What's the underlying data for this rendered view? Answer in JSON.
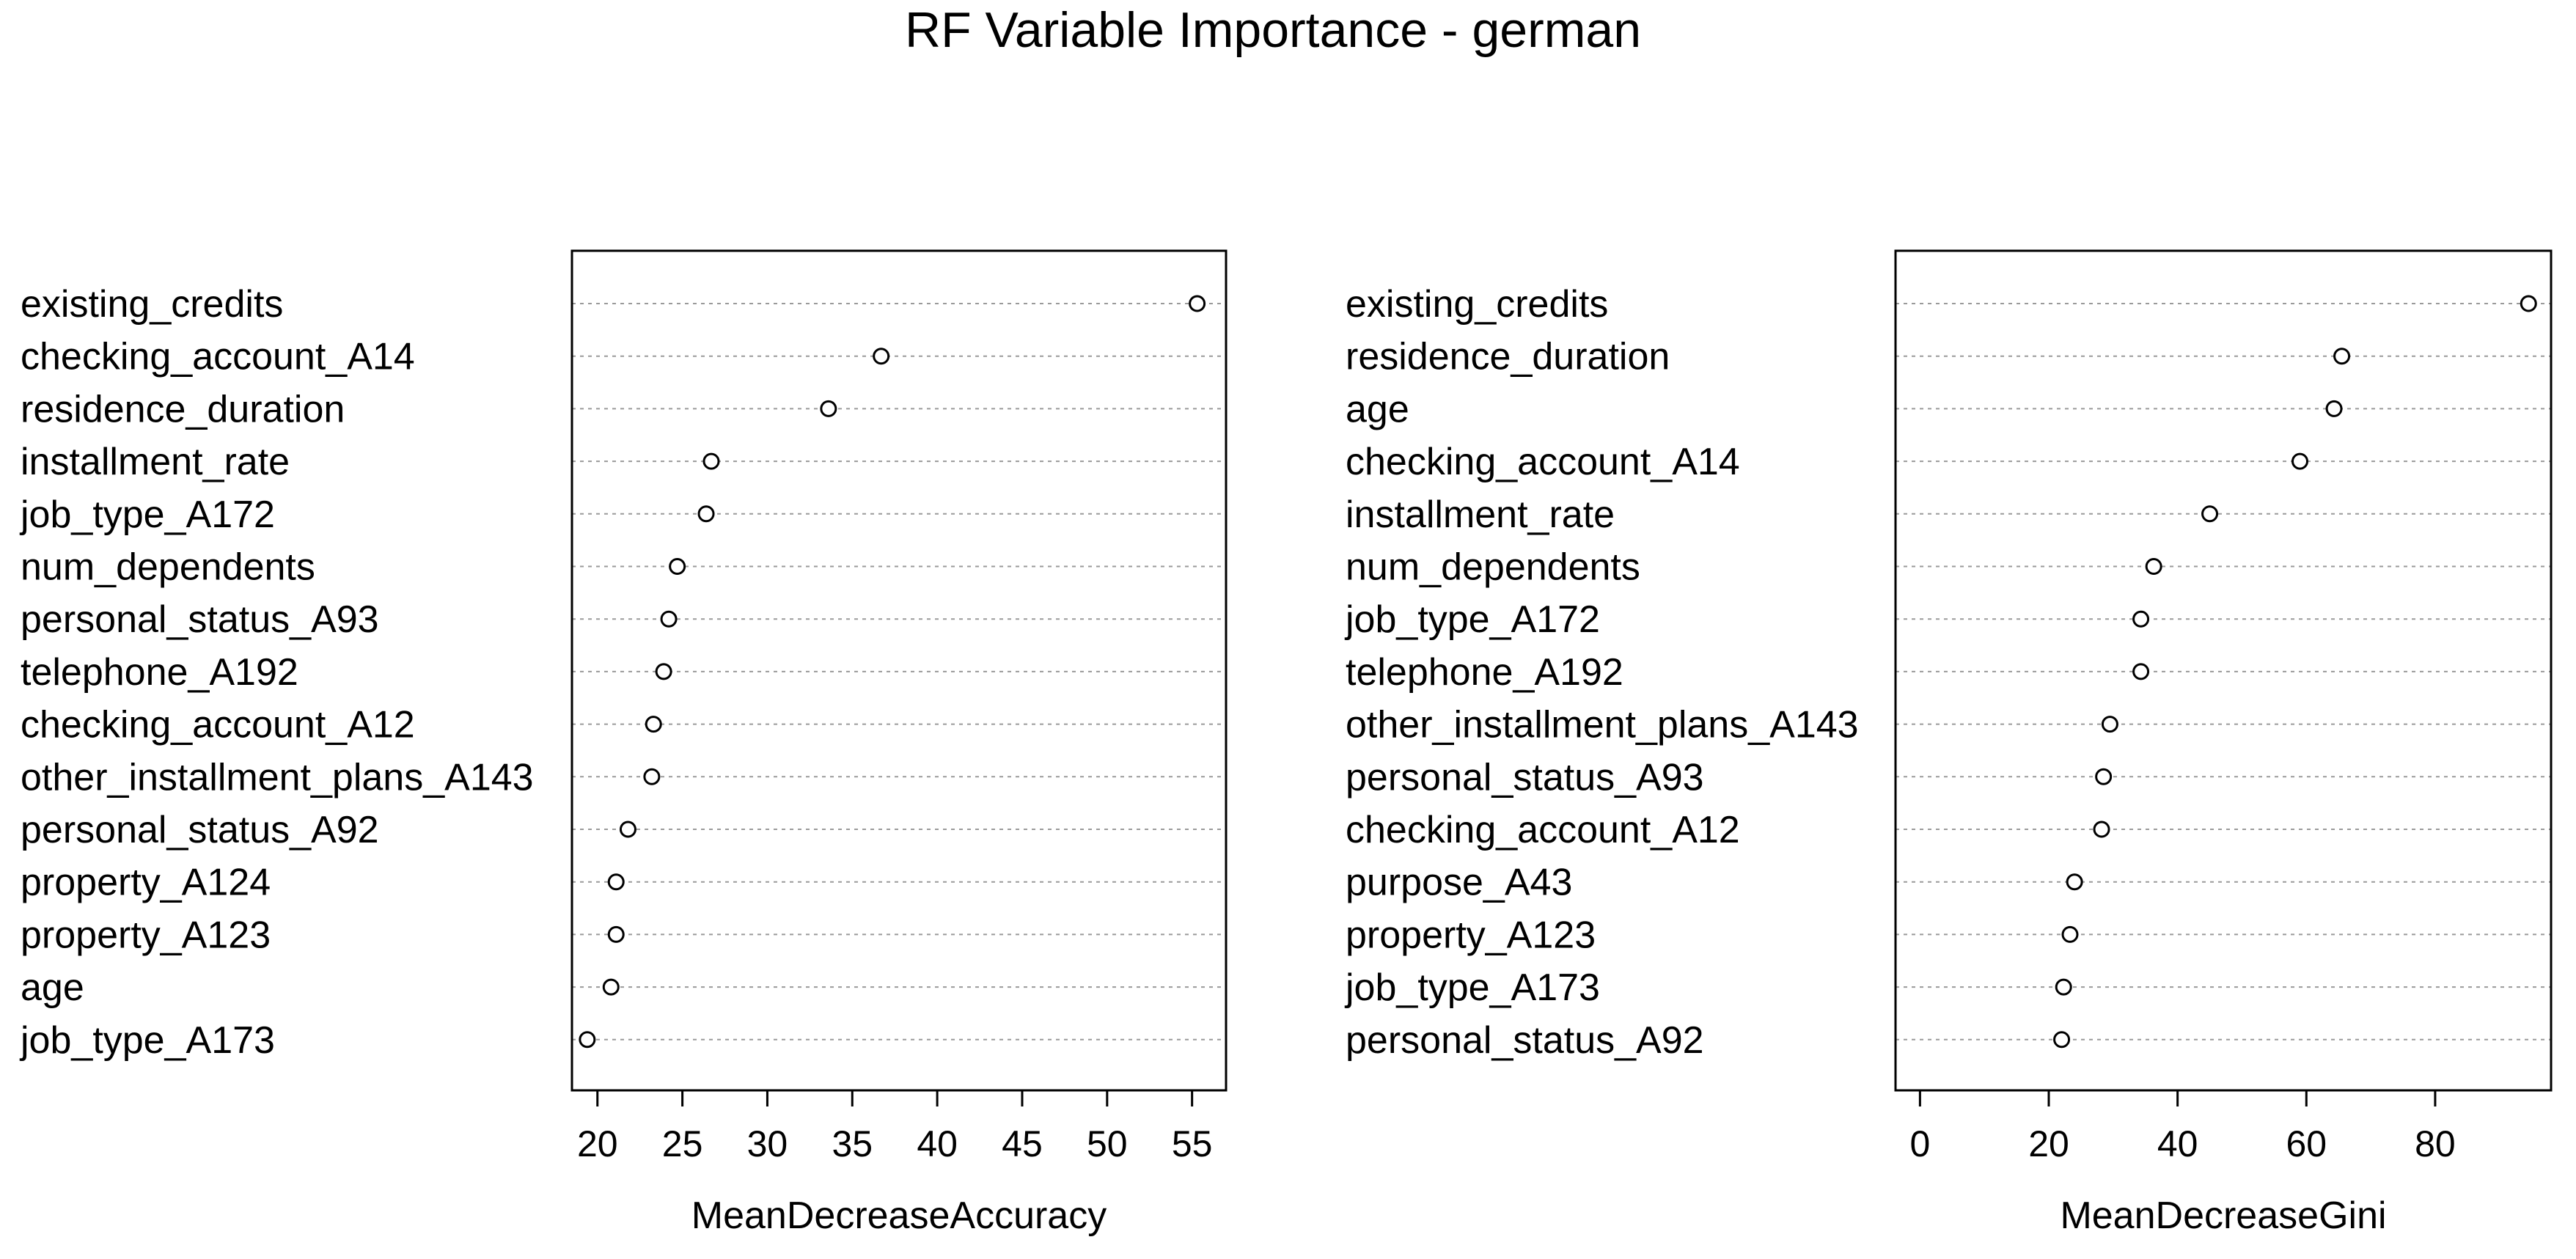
{
  "chart_data": {
    "title": "RF Variable Importance - german",
    "panels": [
      {
        "type": "scatter",
        "xlabel": "MeanDecreaseAccuracy",
        "xlim": [
          18.5,
          57
        ],
        "xticks": [
          20,
          25,
          30,
          35,
          40,
          45,
          50,
          55
        ],
        "grid": true,
        "items": [
          {
            "label": "existing_credits",
            "value": 55.3
          },
          {
            "label": "checking_account_A14",
            "value": 36.7
          },
          {
            "label": "residence_duration",
            "value": 33.6
          },
          {
            "label": "installment_rate",
            "value": 26.7
          },
          {
            "label": "job_type_A172",
            "value": 26.4
          },
          {
            "label": "num_dependents",
            "value": 24.7
          },
          {
            "label": "personal_status_A93",
            "value": 24.2
          },
          {
            "label": "telephone_A192",
            "value": 23.9
          },
          {
            "label": "checking_account_A12",
            "value": 23.3
          },
          {
            "label": "other_installment_plans_A143",
            "value": 23.2
          },
          {
            "label": "personal_status_A92",
            "value": 21.8
          },
          {
            "label": "property_A124",
            "value": 21.1
          },
          {
            "label": "property_A123",
            "value": 21.1
          },
          {
            "label": "age",
            "value": 20.8
          },
          {
            "label": "job_type_A173",
            "value": 19.4
          }
        ]
      },
      {
        "type": "scatter",
        "xlabel": "MeanDecreaseGini",
        "xlim": [
          -3.8,
          98
        ],
        "xticks": [
          0,
          20,
          40,
          60,
          80
        ],
        "grid": true,
        "items": [
          {
            "label": "existing_credits",
            "value": 94.5
          },
          {
            "label": "residence_duration",
            "value": 65.5
          },
          {
            "label": "age",
            "value": 64.3
          },
          {
            "label": "checking_account_A14",
            "value": 59.0
          },
          {
            "label": "installment_rate",
            "value": 45.0
          },
          {
            "label": "num_dependents",
            "value": 36.3
          },
          {
            "label": "job_type_A172",
            "value": 34.3
          },
          {
            "label": "telephone_A192",
            "value": 34.3
          },
          {
            "label": "other_installment_plans_A143",
            "value": 29.5
          },
          {
            "label": "personal_status_A93",
            "value": 28.5
          },
          {
            "label": "checking_account_A12",
            "value": 28.2
          },
          {
            "label": "purpose_A43",
            "value": 24.0
          },
          {
            "label": "property_A123",
            "value": 23.3
          },
          {
            "label": "job_type_A173",
            "value": 22.3
          },
          {
            "label": "personal_status_A92",
            "value": 22.0
          }
        ]
      }
    ]
  }
}
